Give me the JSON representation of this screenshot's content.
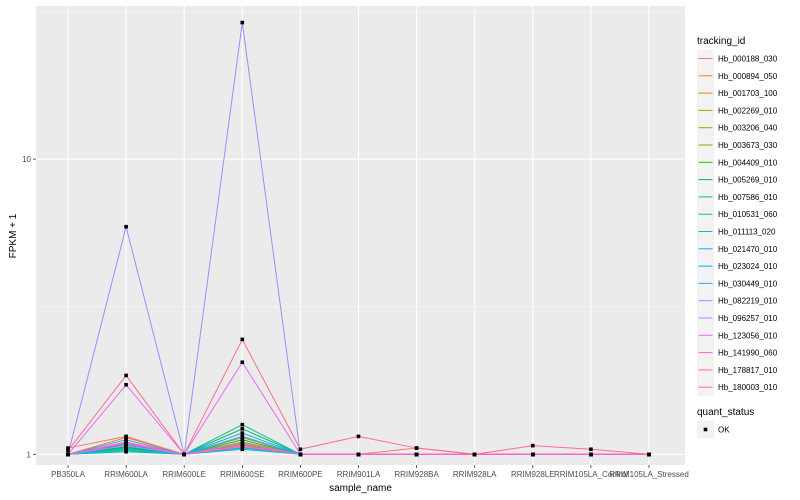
{
  "chart_data": {
    "type": "line",
    "xlabel": "sample_name",
    "ylabel": "FPKM + 1",
    "y_scale": "log10",
    "ylim": [
      0.92,
      33
    ],
    "y_ticks": [
      1,
      10
    ],
    "y_tick_labels": [
      "1",
      "10"
    ],
    "grid": true,
    "legend_position": "right",
    "categories": [
      "PB350LA",
      "RRIM600LA",
      "RRIM600LE",
      "RRIM600SE",
      "RRIM600PE",
      "RRIM901LA",
      "RRIM928BA",
      "RRIM928LA",
      "RRIM928LE",
      "RRIM105LA_Control",
      "RRIM105LA_Stressed"
    ],
    "series_legend_title": "tracking_id",
    "series": [
      {
        "name": "Hb_000188_030",
        "color": "#F8766D",
        "values": [
          1.05,
          1.15,
          1.0,
          1.08,
          1.0,
          1.0,
          1.05,
          1.0,
          1.0,
          1.0,
          1.0
        ]
      },
      {
        "name": "Hb_000894_050",
        "color": "#EA8331",
        "values": [
          1.0,
          1.14,
          1.0,
          1.1,
          1.0,
          1.0,
          1.0,
          1.0,
          1.0,
          1.0,
          1.0
        ]
      },
      {
        "name": "Hb_001703_100",
        "color": "#D89000",
        "values": [
          1.0,
          1.1,
          1.0,
          1.12,
          1.0,
          1.0,
          1.0,
          1.0,
          1.0,
          1.0,
          1.0
        ]
      },
      {
        "name": "Hb_002269_010",
        "color": "#C09B00",
        "values": [
          1.0,
          1.08,
          1.0,
          1.14,
          1.0,
          1.0,
          1.0,
          1.0,
          1.0,
          1.0,
          1.0
        ]
      },
      {
        "name": "Hb_003206_040",
        "color": "#A3A500",
        "values": [
          1.0,
          1.06,
          1.0,
          1.1,
          1.0,
          1.0,
          1.0,
          1.0,
          1.0,
          1.0,
          1.0
        ]
      },
      {
        "name": "Hb_003673_030",
        "color": "#7CAE00",
        "values": [
          1.0,
          1.05,
          1.0,
          1.08,
          1.0,
          1.0,
          1.0,
          1.0,
          1.0,
          1.0,
          1.0
        ]
      },
      {
        "name": "Hb_004409_010",
        "color": "#39B600",
        "values": [
          1.0,
          1.04,
          1.0,
          1.06,
          1.0,
          1.0,
          1.0,
          1.0,
          1.0,
          1.0,
          1.0
        ]
      },
      {
        "name": "Hb_005269_010",
        "color": "#00BB4E",
        "values": [
          1.0,
          1.06,
          1.0,
          1.22,
          1.0,
          1.0,
          1.0,
          1.0,
          1.0,
          1.0,
          1.0
        ]
      },
      {
        "name": "Hb_007586_010",
        "color": "#00BF7D",
        "values": [
          1.0,
          1.05,
          1.0,
          1.12,
          1.0,
          1.0,
          1.0,
          1.0,
          1.0,
          1.0,
          1.0
        ]
      },
      {
        "name": "Hb_010531_060",
        "color": "#00C1A3",
        "values": [
          1.0,
          1.03,
          1.0,
          1.26,
          1.0,
          1.0,
          1.0,
          1.0,
          1.0,
          1.0,
          1.0
        ]
      },
      {
        "name": "Hb_011113_020",
        "color": "#00BFC4",
        "values": [
          1.0,
          1.02,
          1.0,
          1.04,
          1.0,
          1.0,
          1.0,
          1.0,
          1.0,
          1.0,
          1.0
        ]
      },
      {
        "name": "Hb_021470_010",
        "color": "#00BAE0",
        "values": [
          1.0,
          1.04,
          1.0,
          1.05,
          1.0,
          1.0,
          1.0,
          1.0,
          1.0,
          1.0,
          1.0
        ]
      },
      {
        "name": "Hb_023024_010",
        "color": "#00B0F6",
        "values": [
          1.0,
          1.08,
          1.0,
          1.18,
          1.0,
          1.0,
          1.0,
          1.0,
          1.0,
          1.0,
          1.0
        ]
      },
      {
        "name": "Hb_030449_010",
        "color": "#35A2FF",
        "values": [
          1.0,
          1.12,
          1.0,
          1.15,
          1.0,
          1.0,
          1.0,
          1.0,
          1.0,
          1.0,
          1.0
        ]
      },
      {
        "name": "Hb_082219_010",
        "color": "#9590FF",
        "values": [
          1.0,
          5.9,
          1.0,
          29.0,
          1.0,
          1.0,
          1.0,
          1.0,
          1.0,
          1.0,
          1.0
        ]
      },
      {
        "name": "Hb_096257_010",
        "color": "#C77CFF",
        "values": [
          1.0,
          1.07,
          1.0,
          1.09,
          1.0,
          1.0,
          1.0,
          1.0,
          1.0,
          1.0,
          1.0
        ]
      },
      {
        "name": "Hb_123056_010",
        "color": "#E76BF3",
        "values": [
          1.0,
          1.72,
          1.0,
          2.05,
          1.0,
          1.0,
          1.0,
          1.0,
          1.0,
          1.0,
          1.0
        ]
      },
      {
        "name": "Hb_141990_060",
        "color": "#FA62DB",
        "values": [
          1.0,
          1.1,
          1.0,
          1.06,
          1.0,
          1.0,
          1.0,
          1.0,
          1.0,
          1.0,
          1.0
        ]
      },
      {
        "name": "Hb_178817_010",
        "color": "#FF62BC",
        "values": [
          1.0,
          1.09,
          1.0,
          1.07,
          1.0,
          1.0,
          1.0,
          1.0,
          1.0,
          1.0,
          1.0
        ]
      },
      {
        "name": "Hb_180003_010",
        "color": "#FF6C91",
        "values": [
          1.03,
          1.85,
          1.0,
          2.45,
          1.04,
          1.15,
          1.05,
          1.0,
          1.07,
          1.04,
          1.0
        ]
      }
    ],
    "shape_legend_title": "quant_status",
    "shape_legend_items": [
      {
        "label": "OK",
        "color": "#000000",
        "shape": "square"
      }
    ],
    "colors": {
      "panel_background": "#EBEBEB",
      "grid_major": "#FFFFFF",
      "grid_minor": "#F5F5F5",
      "point": "#000000",
      "legend_key_background": "#F2F2F2"
    }
  }
}
